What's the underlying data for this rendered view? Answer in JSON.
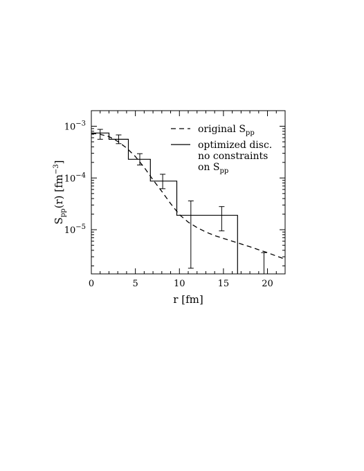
{
  "chart_data": {
    "type": "line",
    "title": "",
    "xlabel": "r [fm]",
    "ylabel_parts": {
      "main": "S",
      "sub": "pp",
      "mid": "(r) [fm",
      "sup": "−3",
      "end": "]"
    },
    "xlim": [
      0,
      22
    ],
    "ylim": [
      1.4e-06,
      0.002
    ],
    "yscale": "log",
    "grid": false,
    "legend_position": "top-right",
    "x_ticks": [
      0,
      5,
      10,
      15,
      20
    ],
    "x_tick_labels": [
      "0",
      "5",
      "10",
      "15",
      "20"
    ],
    "y_ticks": [
      {
        "value": 0.001,
        "base": "10",
        "exp": "−3"
      },
      {
        "value": 0.0001,
        "base": "10",
        "exp": "−4"
      },
      {
        "value": 1e-05,
        "base": "10",
        "exp": "−5"
      }
    ],
    "series": [
      {
        "style": "dashed",
        "legend": {
          "main": "original S",
          "sub": "pp"
        },
        "x": [
          0,
          1,
          2,
          3,
          4,
          5,
          6,
          7,
          8,
          9,
          10,
          11,
          12,
          13,
          14,
          15,
          16,
          17,
          18,
          19,
          20,
          21,
          22
        ],
        "y": [
          0.00073,
          0.0007,
          0.00063,
          0.00051,
          0.00038,
          0.00026,
          0.00016,
          9.2e-05,
          5.5e-05,
          3.2e-05,
          1.95e-05,
          1.4e-05,
          1.1e-05,
          9e-06,
          7.7e-06,
          6.8e-06,
          6e-06,
          5.3e-06,
          4.7e-06,
          4.1e-06,
          3.6e-06,
          3.1e-06,
          2.7e-06
        ]
      },
      {
        "style": "step",
        "legend_lines": [
          "optimized disc.",
          "no constraints"
        ],
        "legend_last": {
          "prefix": "on S",
          "sub": "pp"
        },
        "bin_edges": [
          0,
          2,
          4.2,
          6.7,
          9.7,
          16.6
        ],
        "values": [
          0.00074,
          0.00056,
          0.00023,
          8.7e-05,
          1.9e-05
        ],
        "tail_drop_x": 16.6
      }
    ],
    "error_bars": [
      {
        "x": 1.0,
        "y": 0.0007,
        "low": 0.00056,
        "high": 0.00087
      },
      {
        "x": 3.1,
        "y": 0.00056,
        "low": 0.00046,
        "high": 0.00068
      },
      {
        "x": 5.5,
        "y": 0.00023,
        "low": 0.000178,
        "high": 0.000295
      },
      {
        "x": 8.1,
        "y": 8.7e-05,
        "low": 6.2e-05,
        "high": 0.000118
      },
      {
        "x": 11.3,
        "y": 1.9e-05,
        "low": 1.8e-06,
        "high": 3.6e-05
      },
      {
        "x": 14.8,
        "y": 1.9e-05,
        "low": 9.5e-06,
        "high": 2.8e-05
      },
      {
        "x": 19.6,
        "y": 3e-06,
        "low": 1.4e-06,
        "high": 3.6e-06
      }
    ]
  }
}
